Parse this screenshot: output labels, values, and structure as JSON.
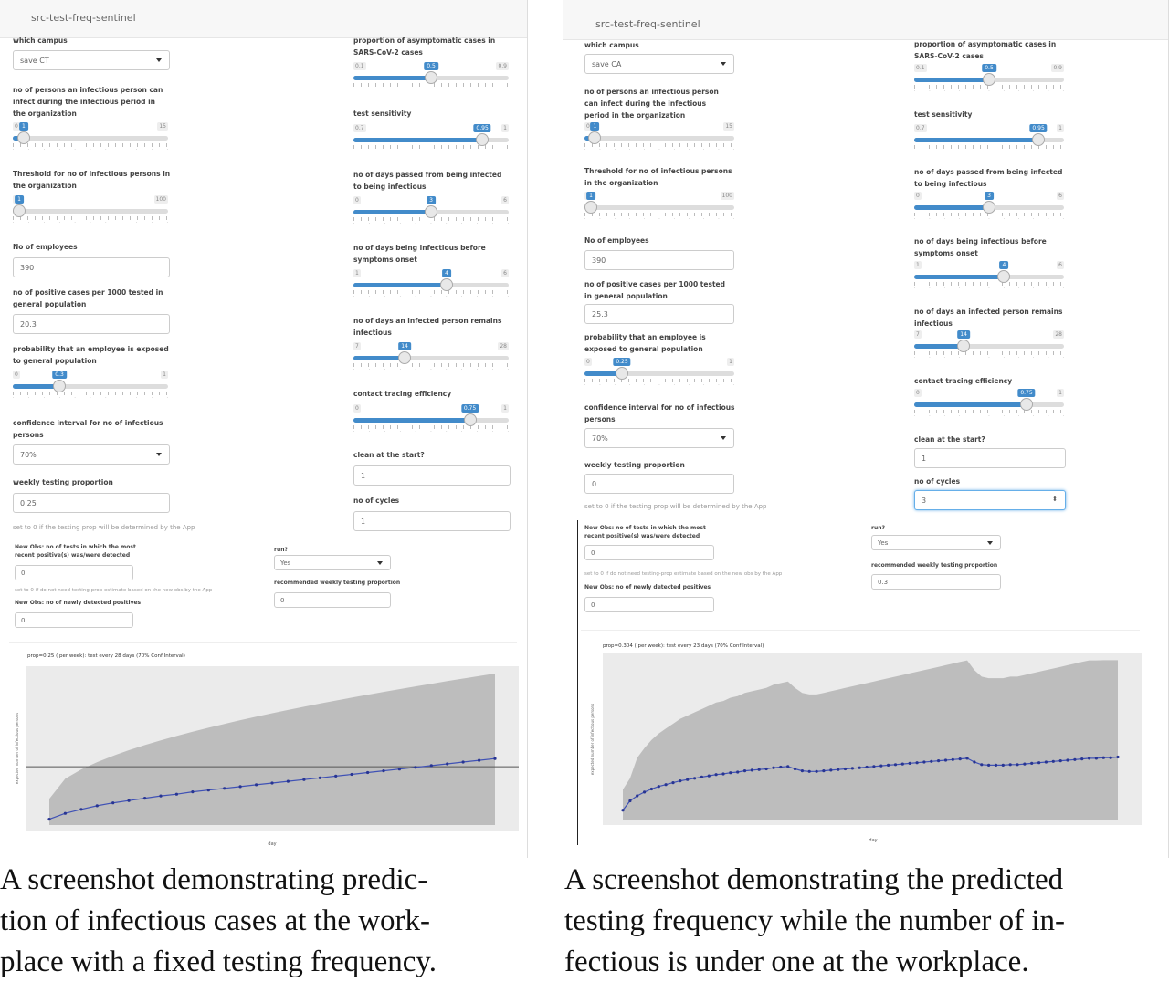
{
  "panels": [
    {
      "id": "A",
      "app_title": "src-test-freq-sentinel",
      "left": {
        "campus_label": "which campus",
        "campus_value": "save CT",
        "infect_label": "no of persons an infectious person can infect during the infectious period in the organization",
        "infect_slider": {
          "min": "0",
          "max": "15",
          "value": "1",
          "fraction": 0.07
        },
        "threshold_label": "Threshold for no of infectious persons in the organization",
        "threshold_slider": {
          "min": "1",
          "max": "100",
          "value": "1",
          "fraction": 0.0
        },
        "employees_label": "No of employees",
        "employees_value": "390",
        "positive_label": "no of positive cases per 1000 tested in general population",
        "positive_value": "20.3",
        "exposed_label": "probability that an employee is exposed to general population",
        "exposed_slider": {
          "min": "0",
          "max": "1",
          "value": "0.3",
          "fraction": 0.3
        },
        "ci_label": "confidence interval for no of infectious persons",
        "ci_value": "70%",
        "weekly_label": "weekly testing proportion",
        "weekly_value": "0.25",
        "weekly_help": "set to 0 if the testing prop will be determined by the App"
      },
      "right": {
        "asym_label": "proportion of asymptomatic cases in SARS-CoV-2 cases",
        "asym_slider": {
          "min": "0.1",
          "max": "0.9",
          "value": "0.5",
          "fraction": 0.5
        },
        "sens_label": "test sensitivity",
        "sens_slider": {
          "min": "0.7",
          "max": "1",
          "value": "0.95",
          "fraction": 0.83
        },
        "days_inf_label": "no of days passed from being infected to being infectious",
        "days_inf_slider": {
          "min": "0",
          "max": "6",
          "value": "3",
          "fraction": 0.5
        },
        "days_before_label": "no of days being infectious before symptoms onset",
        "days_before_slider": {
          "min": "1",
          "max": "6",
          "value": "4",
          "fraction": 0.6
        },
        "days_remain_label": "no of days an infected person remains infectious",
        "days_remain_slider": {
          "min": "7",
          "max": "28",
          "value": "14",
          "fraction": 0.33
        },
        "tracing_label": "contact tracing efficiency",
        "tracing_slider": {
          "min": "0",
          "max": "1",
          "value": "0.75",
          "fraction": 0.75
        },
        "clean_label": "clean at the start?",
        "clean_value": "1",
        "cycles_label": "no of cycles",
        "cycles_value": "1"
      },
      "extra": {
        "newobs_label": "New Obs: no of tests in which the most recent positive(s) was/were detected",
        "newobs_value": "0",
        "newobs_help": "set to 0 if do not need testing-prop estimate based on the new obs by the App",
        "newpos_label": "New Obs: no of newly detected positives",
        "newpos_value": "0",
        "run_label": "run?",
        "run_value": "Yes",
        "rec_label": "recommended weekly testing proportion",
        "rec_value": "0"
      },
      "plot": {
        "title": "prop=0.25 ( per week): test every 28 days (70% Conf Interval)",
        "ylabel": "expected number of infectious persons",
        "xlabel": "day"
      }
    },
    {
      "id": "B",
      "app_title": "src-test-freq-sentinel",
      "left": {
        "campus_label": "which campus",
        "campus_value": "save CA",
        "infect_label": "no of persons an infectious person can infect during the infectious period in the organization",
        "infect_slider": {
          "min": "0",
          "max": "15",
          "value": "1",
          "fraction": 0.07
        },
        "threshold_label": "Threshold for no of infectious persons in the organization",
        "threshold_slider": {
          "min": "1",
          "max": "100",
          "value": "1",
          "fraction": 0.0
        },
        "employees_label": "No of employees",
        "employees_value": "390",
        "positive_label": "no of positive cases per 1000 tested in general population",
        "positive_value": "25.3",
        "exposed_label": "probability that an employee is exposed to general population",
        "exposed_slider": {
          "min": "0",
          "max": "1",
          "value": "0.25",
          "fraction": 0.25
        },
        "ci_label": "confidence interval for no of infectious persons",
        "ci_value": "70%",
        "weekly_label": "weekly testing proportion",
        "weekly_value": "0",
        "weekly_help": "set to 0 if the testing prop will be determined by the App"
      },
      "right": {
        "asym_label": "proportion of asymptomatic cases in SARS-CoV-2 cases",
        "asym_slider": {
          "min": "0.1",
          "max": "0.9",
          "value": "0.5",
          "fraction": 0.5
        },
        "sens_label": "test sensitivity",
        "sens_slider": {
          "min": "0.7",
          "max": "1",
          "value": "0.95",
          "fraction": 0.83
        },
        "days_inf_label": "no of days passed from being infected to being infectious",
        "days_inf_slider": {
          "min": "0",
          "max": "6",
          "value": "3",
          "fraction": 0.5
        },
        "days_before_label": "no of days being infectious before symptoms onset",
        "days_before_slider": {
          "min": "1",
          "max": "6",
          "value": "4",
          "fraction": 0.6
        },
        "days_remain_label": "no of days an infected person remains infectious",
        "days_remain_slider": {
          "min": "7",
          "max": "28",
          "value": "14",
          "fraction": 0.33
        },
        "tracing_label": "contact tracing efficiency",
        "tracing_slider": {
          "min": "0",
          "max": "1",
          "value": "0.75",
          "fraction": 0.75
        },
        "clean_label": "clean at the start?",
        "clean_value": "1",
        "cycles_label": "no of cycles",
        "cycles_value": "3"
      },
      "extra": {
        "newobs_label": "New Obs: no of tests in which the most recent positive(s) was/were detected",
        "newobs_value": "0",
        "newobs_help": "set to 0 if do not need testing-prop estimate based on the new obs by the App",
        "newpos_label": "New Obs: no of newly detected positives",
        "newpos_value": "0",
        "run_label": "run?",
        "run_value": "Yes",
        "rec_label": "recommended weekly testing proportion",
        "rec_value": "0.3"
      },
      "plot": {
        "title": "prop=0.304 ( per week): test every 23 days (70% Conf Interval)",
        "ylabel": "expected number of infectious persons",
        "xlabel": "day"
      }
    }
  ],
  "captions": [
    [
      "A screenshot demonstrating predic-",
      "tion of infectious cases at the work-",
      "place with a fixed testing frequency."
    ],
    [
      "A screenshot demonstrating the predicted",
      "testing frequency while the number of in-",
      "fectious is under one at the workplace."
    ]
  ],
  "chart_data": [
    {
      "type": "line",
      "title": "prop=0.25 ( per week): test every 28 days (70% Conf Interval)",
      "xlabel": "day",
      "ylabel": "expected number of infectious persons",
      "threshold": 1.0,
      "x": [
        0,
        1,
        2,
        3,
        4,
        5,
        6,
        7,
        8,
        9,
        10,
        11,
        12,
        13,
        14,
        15,
        16,
        17,
        18,
        19,
        20,
        21,
        22,
        23,
        24,
        25,
        26,
        27,
        28
      ],
      "series": [
        {
          "values": [
            0.1,
            0.2,
            0.27,
            0.33,
            0.38,
            0.42,
            0.46,
            0.5,
            0.53,
            0.57,
            0.6,
            0.63,
            0.66,
            0.69,
            0.72,
            0.75,
            0.78,
            0.81,
            0.84,
            0.87,
            0.9,
            0.93,
            0.96,
            0.99,
            1.02,
            1.05,
            1.08,
            1.11,
            1.14
          ]
        }
      ],
      "band_upper_end": 2.6,
      "band_lower": 0.0
    },
    {
      "type": "line",
      "title": "prop=0.304 ( per week): test every 23 days (70% Conf Interval)",
      "xlabel": "day",
      "ylabel": "expected number of infectious persons",
      "threshold": 1.0,
      "ylim": [
        0,
        2.6
      ],
      "x": [
        0,
        1,
        2,
        3,
        4,
        5,
        6,
        7,
        8,
        9,
        10,
        11,
        12,
        13,
        14,
        15,
        16,
        17,
        18,
        19,
        20,
        21,
        22,
        23,
        24,
        25,
        26,
        27,
        28,
        29,
        30,
        31,
        32,
        33,
        34,
        35,
        36,
        37,
        38,
        39,
        40,
        41,
        42,
        43,
        44,
        45,
        46,
        47,
        48,
        49,
        50,
        51,
        52,
        53,
        54,
        55,
        56,
        57,
        58,
        59,
        60,
        61,
        62,
        63,
        64,
        65,
        66,
        67,
        68,
        69
      ],
      "series": [
        {
          "values": [
            0.15,
            0.3,
            0.38,
            0.44,
            0.49,
            0.53,
            0.56,
            0.59,
            0.62,
            0.64,
            0.66,
            0.68,
            0.7,
            0.72,
            0.73,
            0.75,
            0.76,
            0.78,
            0.79,
            0.8,
            0.81,
            0.83,
            0.84,
            0.85,
            0.81,
            0.78,
            0.77,
            0.77,
            0.78,
            0.79,
            0.8,
            0.81,
            0.82,
            0.83,
            0.84,
            0.85,
            0.86,
            0.87,
            0.88,
            0.89,
            0.9,
            0.91,
            0.92,
            0.93,
            0.94,
            0.95,
            0.96,
            0.97,
            0.98,
            0.92,
            0.88,
            0.87,
            0.87,
            0.87,
            0.88,
            0.88,
            0.89,
            0.9,
            0.91,
            0.92,
            0.93,
            0.94,
            0.95,
            0.96,
            0.97,
            0.98,
            0.98,
            0.99,
            0.99,
            1.0
          ]
        }
      ]
    }
  ]
}
